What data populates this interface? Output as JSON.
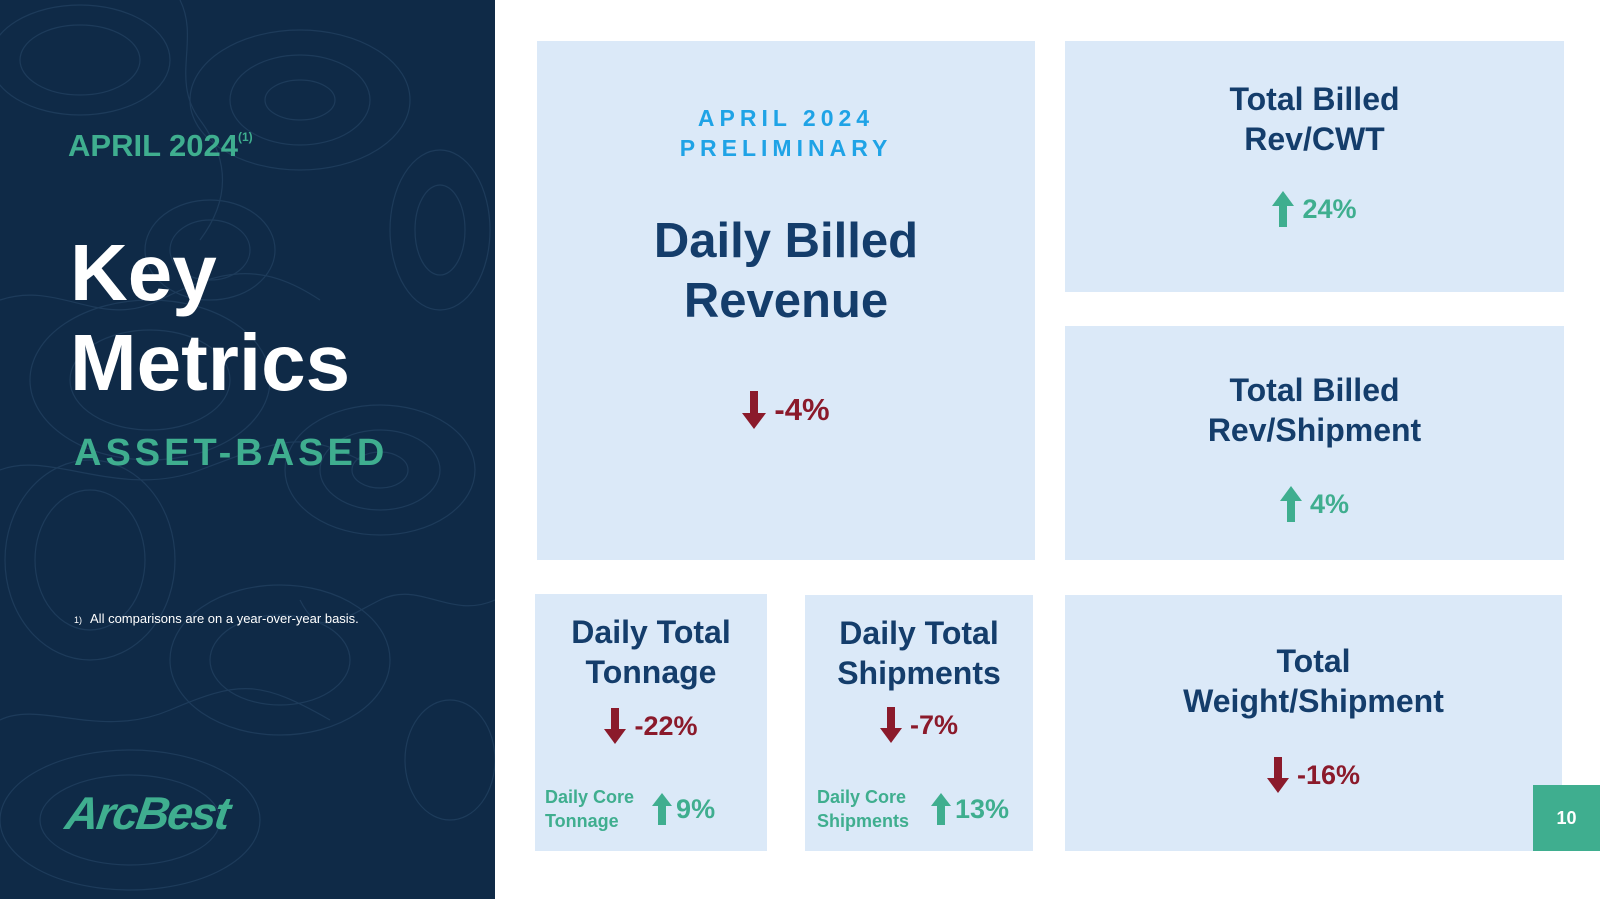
{
  "sidebar": {
    "period": "APRIL 2024",
    "period_footnote_mark": "(1)",
    "title_line1": "Key",
    "title_line2": "Metrics",
    "subtitle": "ASSET-BASED",
    "footnote_mark": "1)",
    "footnote_text": "All comparisons are on a year-over-year basis.",
    "logo_text": "ArcBest"
  },
  "metrics": {
    "daily_billed_revenue": {
      "eyebrow_line1": "APRIL 2024",
      "eyebrow_line2": "PRELIMINARY",
      "name_line1": "Daily Billed",
      "name_line2": "Revenue",
      "change": "-4%",
      "direction": "down"
    },
    "rev_cwt": {
      "name_line1": "Total Billed",
      "name_line2": "Rev/CWT",
      "change": "24%",
      "direction": "up"
    },
    "rev_shipment": {
      "name_line1": "Total Billed",
      "name_line2": "Rev/Shipment",
      "change": "4%",
      "direction": "up"
    },
    "tonnage": {
      "name_line1": "Daily Total",
      "name_line2": "Tonnage",
      "change": "-22%",
      "direction": "down",
      "core_label_line1": "Daily Core",
      "core_label_line2": "Tonnage",
      "core_change": "9%",
      "core_direction": "up"
    },
    "shipments": {
      "name_line1": "Daily Total",
      "name_line2": "Shipments",
      "change": "-7%",
      "direction": "down",
      "core_label_line1": "Daily Core",
      "core_label_line2": "Shipments",
      "core_change": "13%",
      "core_direction": "up"
    },
    "weight_shipment": {
      "name_line1": "Total",
      "name_line2": "Weight/Shipment",
      "change": "-16%",
      "direction": "down"
    }
  },
  "page_number": "10",
  "colors": {
    "navy": "#0f2a47",
    "green": "#3fae8f",
    "card_bg": "#dbe9f8",
    "heading_blue": "#143d6b",
    "accent_blue": "#1fa3e6",
    "down_red": "#8b1a2b"
  }
}
